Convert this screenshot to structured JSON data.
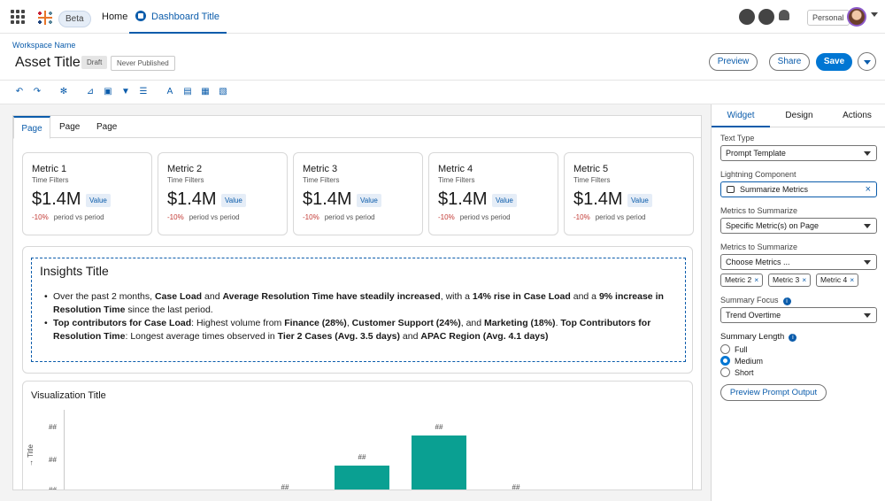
{
  "nav": {
    "beta": "Beta",
    "home": "Home",
    "dashboard_tab": "Dashboard Title",
    "personal": "Personal"
  },
  "header": {
    "workspace": "Workspace Name",
    "title": "Asset Title",
    "draft": "Draft",
    "status": "Never Published",
    "preview": "Preview",
    "share": "Share",
    "save": "Save"
  },
  "page_tabs": [
    "Page",
    "Page",
    "Page"
  ],
  "metrics": [
    {
      "title": "Metric 1",
      "filter": "Time Filters",
      "value": "$1.4M",
      "badge": "Value",
      "delta": "-10%",
      "delta_label": "period vs period"
    },
    {
      "title": "Metric 2",
      "filter": "Time Filters",
      "value": "$1.4M",
      "badge": "Value",
      "delta": "-10%",
      "delta_label": "period vs period"
    },
    {
      "title": "Metric 3",
      "filter": "Time Filters",
      "value": "$1.4M",
      "badge": "Value",
      "delta": "-10%",
      "delta_label": "period vs period"
    },
    {
      "title": "Metric 4",
      "filter": "Time Filters",
      "value": "$1.4M",
      "badge": "Value",
      "delta": "-10%",
      "delta_label": "period vs period"
    },
    {
      "title": "Metric 5",
      "filter": "Time Filters",
      "value": "$1.4M",
      "badge": "Value",
      "delta": "-10%",
      "delta_label": "period vs period"
    }
  ],
  "insights": {
    "title": "Insights Title",
    "b1": {
      "t1": "Over the past 2 months, ",
      "s1": "Case Load",
      "t2": " and ",
      "s2": "Average Resolution Time have steadily increased",
      "t3": ", with a ",
      "s3": "14% rise in Case Load",
      "t4": " and a ",
      "s4": "9% increase in Resolution Time",
      "t5": " since the last period."
    },
    "b2": {
      "s1": "Top contributors for Case Load",
      "t1": ": Highest volume from ",
      "s2": "Finance (28%)",
      "t2": ", ",
      "s3": "Customer Support (24%)",
      "t3": ", and ",
      "s4": "Marketing (18%)",
      "t4": ". ",
      "s5": "Top Contributors for Resolution Time",
      "t5": ": Longest average times observed in ",
      "s6": "Tier 2 Cases (Avg. 3.5 days)",
      "t6": " and ",
      "s7": "APAC Region (Avg. 4.1 days)"
    }
  },
  "viz": {
    "title": "Visualization Title",
    "y_ticks": [
      "##",
      "##",
      "##"
    ],
    "y_label": "Title",
    "bar_label": "##",
    "colors": {
      "teal": "#0aa092",
      "purple": "#b315f0"
    }
  },
  "chart_data": {
    "type": "bar",
    "categories": [
      "",
      "",
      "",
      "",
      "",
      ""
    ],
    "series": [
      {
        "values": [
          0,
          30,
          55,
          75,
          30,
          0
        ]
      },
      {
        "values": [
          0,
          0,
          6,
          19,
          0,
          0
        ]
      }
    ],
    "data_labels": [
      "##",
      "##",
      "##",
      "##",
      "##",
      "##"
    ],
    "stacked": true
  },
  "panel": {
    "tabs": [
      "Widget",
      "Design",
      "Actions"
    ],
    "text_type_label": "Text Type",
    "text_type": "Prompt Template",
    "lc_label": "Lightning Component",
    "lc_value": "Summarize Metrics",
    "mts_label": "Metrics to Summarize",
    "mts_value": "Specific Metric(s) on Page",
    "mts2_label": "Metrics to Summarize",
    "mts2_placeholder": "Choose Metrics ...",
    "pills": [
      "Metric 2",
      "Metric 3",
      "Metric 4"
    ],
    "focus_label": "Summary Focus",
    "focus_value": "Trend Overtime",
    "length_label": "Summary Length",
    "lengths": [
      "Full",
      "Medium",
      "Short"
    ],
    "selected_length": "Medium",
    "preview_button": "Preview Prompt Output"
  }
}
